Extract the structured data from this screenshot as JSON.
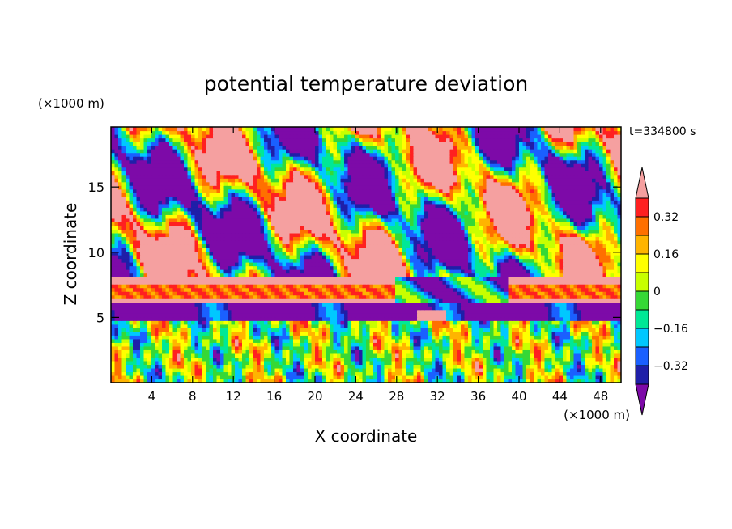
{
  "chart_data": {
    "type": "heatmap",
    "title": "potential temperature deviation",
    "xlabel": "X coordinate",
    "ylabel": "Z coordinate",
    "x_unit": "(×1000 m)",
    "y_unit": "(×1000 m)",
    "time_label": "t=334800 s",
    "xlim": [
      0,
      50
    ],
    "ylim": [
      0,
      19.6
    ],
    "x_ticks": [
      "4",
      "8",
      "12",
      "16",
      "20",
      "24",
      "28",
      "32",
      "36",
      "40",
      "44",
      "48"
    ],
    "y_ticks": [
      "5",
      "10",
      "15"
    ],
    "colorbar": {
      "labels": [
        "0.32",
        "0.16",
        "0",
        "-0.16",
        "-0.32"
      ],
      "levels": [
        -0.4,
        -0.32,
        -0.24,
        -0.16,
        -0.08,
        0,
        0.08,
        0.16,
        0.24,
        0.32,
        0.4
      ],
      "colors": [
        "#7d0aa8",
        "#1f1fa8",
        "#1a60ff",
        "#00c8ff",
        "#00e896",
        "#36d836",
        "#c8ff00",
        "#ffff00",
        "#ffb400",
        "#ff7000",
        "#ff2020",
        "#f5a0a0"
      ],
      "over_color": "#f5a0a0",
      "under_color": "#7d0aa8"
    },
    "field_bands": [
      {
        "z_from": 0,
        "z_to": 4.8,
        "pattern": "mixed small-scale anomalies"
      },
      {
        "z_from": 4.8,
        "z_to": 6,
        "pattern": "mostly -0.4 and below"
      },
      {
        "z_from": 6,
        "z_to": 8,
        "pattern": "layer of +0.24 to +0.4"
      },
      {
        "z_from": 8,
        "z_to": 19.6,
        "pattern": "alternating large blobs of +0.4 and -0.4"
      }
    ]
  }
}
